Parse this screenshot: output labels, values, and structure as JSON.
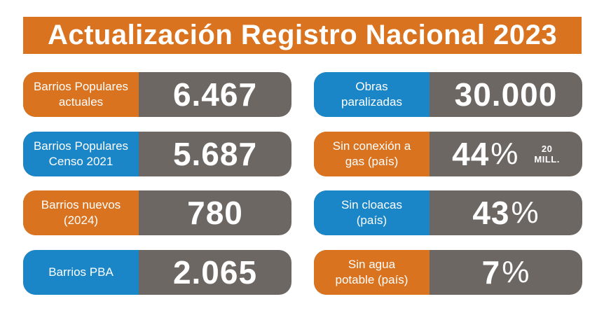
{
  "title": "Actualización Registro Nacional 2023",
  "colors": {
    "orange": "#d9731f",
    "blue": "#1a86c8",
    "gray": "#6d6764"
  },
  "left_cards": [
    {
      "label": "Barrios Populares\nactuales",
      "value": "6.467",
      "color": "orange"
    },
    {
      "label": "Barrios Populares\nCenso 2021",
      "value": "5.687",
      "color": "blue"
    },
    {
      "label": "Barrios nuevos\n(2024)",
      "value": "780",
      "color": "orange"
    },
    {
      "label": "Barrios PBA",
      "value": "2.065",
      "color": "blue"
    }
  ],
  "right_cards": [
    {
      "label": "Obras\nparalizadas",
      "value": "30.000",
      "color": "blue"
    },
    {
      "label": "Sin conexión a\ngas (país)",
      "value": "44",
      "unit": "%",
      "extra": "20\nMILL.",
      "color": "orange"
    },
    {
      "label": "Sin cloacas\n(país)",
      "value": "43",
      "unit": "%",
      "color": "blue"
    },
    {
      "label": "Sin agua\npotable (país)",
      "value": "7",
      "unit": "%",
      "color": "orange"
    }
  ]
}
